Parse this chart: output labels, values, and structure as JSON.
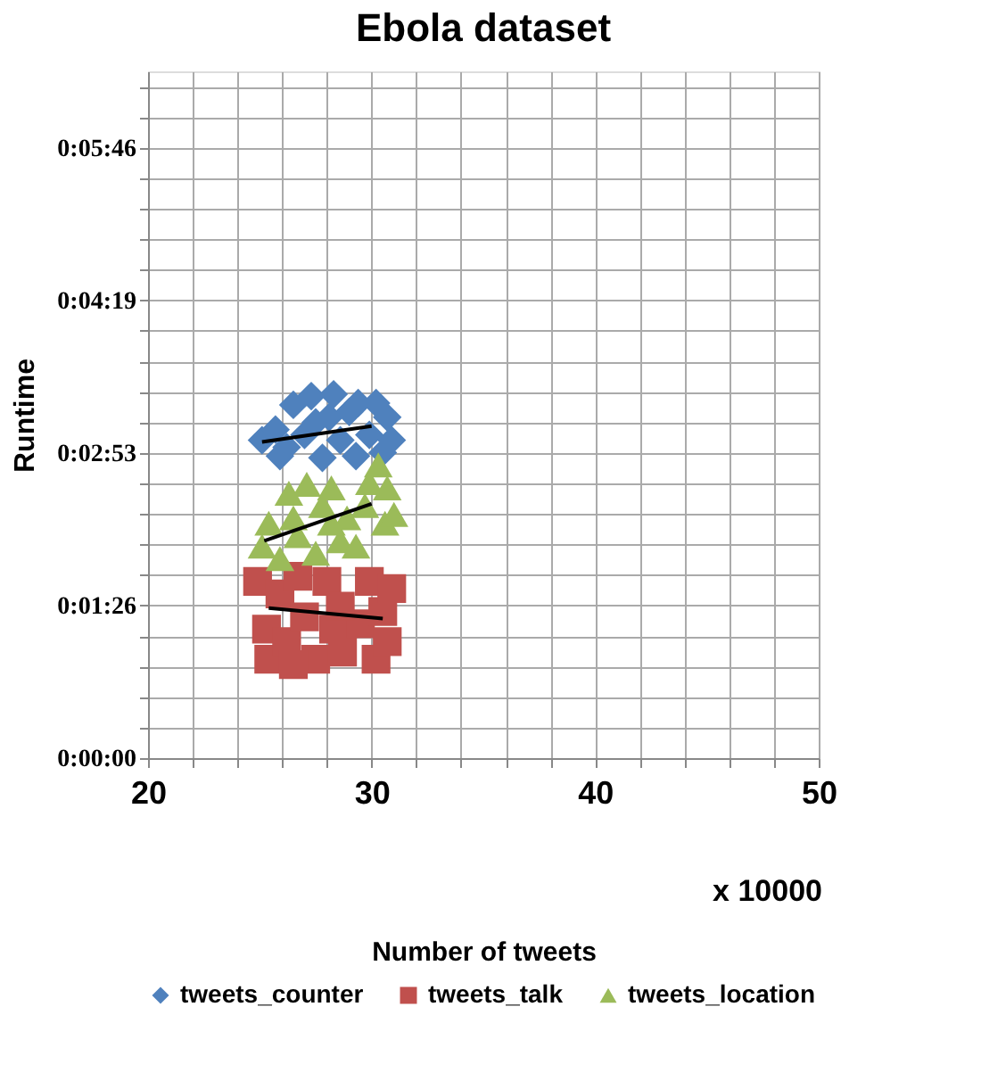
{
  "chart_data": {
    "type": "scatter",
    "title": "Ebola dataset",
    "xlabel": "Number of tweets",
    "ylabel": "Runtime",
    "annotations": [
      "x 10000"
    ],
    "xlim": [
      20,
      50
    ],
    "ylim": [
      0,
      388.8
    ],
    "xticks": [
      20,
      {
        "value": 22,
        "label": null
      },
      {
        "value": 24,
        "label": null
      },
      {
        "value": 26,
        "label": null
      },
      {
        "value": 28,
        "label": null
      },
      30,
      {
        "value": 32,
        "label": null
      },
      {
        "value": 34,
        "label": null
      },
      {
        "value": 36,
        "label": null
      },
      {
        "value": 38,
        "label": null
      },
      40,
      {
        "value": 42,
        "label": null
      },
      {
        "value": 44,
        "label": null
      },
      {
        "value": 46,
        "label": null
      },
      {
        "value": 48,
        "label": null
      },
      50
    ],
    "yticks": [
      {
        "value": 0,
        "label": "0:00:00"
      },
      {
        "value": 17.28,
        "label": null
      },
      {
        "value": 34.56,
        "label": null
      },
      {
        "value": 51.84,
        "label": null
      },
      {
        "value": 69.12,
        "label": null
      },
      {
        "value": 86.4,
        "label": "0:01:26"
      },
      {
        "value": 103.68,
        "label": null
      },
      {
        "value": 120.96,
        "label": null
      },
      {
        "value": 138.24,
        "label": null
      },
      {
        "value": 155.52,
        "label": null
      },
      {
        "value": 172.8,
        "label": "0:02:53"
      },
      {
        "value": 190.08,
        "label": null
      },
      {
        "value": 207.36,
        "label": null
      },
      {
        "value": 224.64,
        "label": null
      },
      {
        "value": 241.92,
        "label": null
      },
      {
        "value": 259.2,
        "label": "0:04:19"
      },
      {
        "value": 276.48,
        "label": null
      },
      {
        "value": 293.76,
        "label": null
      },
      {
        "value": 311.04,
        "label": null
      },
      {
        "value": 328.32,
        "label": null
      },
      {
        "value": 345.6,
        "label": "0:05:46"
      },
      {
        "value": 362.88,
        "label": null
      },
      {
        "value": 380.16,
        "label": null
      }
    ],
    "grid": true,
    "legend": "bottom",
    "series": [
      {
        "name": "tweets_counter",
        "color": "#4f81bd",
        "marker": "diamond",
        "x": [
          25.1,
          25.7,
          25.9,
          26.5,
          27.0,
          27.3,
          27.8,
          28.1,
          28.3,
          28.6,
          29.0,
          29.3,
          29.4,
          29.9,
          30.2,
          30.5,
          30.7,
          30.9,
          26.2,
          27.5
        ],
        "values": [
          180,
          186,
          171,
          200,
          183,
          205,
          170,
          193,
          206,
          180,
          196,
          171,
          201,
          183,
          201,
          173,
          193,
          180,
          176,
          190
        ]
      },
      {
        "name": "tweets_talk",
        "color": "#c0504d",
        "marker": "square",
        "x": [
          24.9,
          25.3,
          25.4,
          25.9,
          26.2,
          26.7,
          27.0,
          27.5,
          28.0,
          28.3,
          28.7,
          29.1,
          29.5,
          29.9,
          30.2,
          30.5,
          30.9,
          30.7,
          26.5,
          28.6
        ],
        "values": [
          100,
          73,
          56,
          93,
          66,
          103,
          80,
          56,
          100,
          73,
          60,
          null,
          76,
          100,
          56,
          83,
          96,
          66,
          53,
          86
        ]
      },
      {
        "name": "tweets_location",
        "color": "#9bbb59",
        "marker": "triangle",
        "x": [
          25.1,
          25.4,
          25.9,
          26.3,
          26.7,
          27.1,
          27.5,
          27.8,
          28.2,
          28.6,
          28.9,
          29.3,
          29.7,
          29.9,
          30.3,
          30.6,
          30.7,
          31.0,
          26.5,
          28.2
        ],
        "values": [
          120,
          133,
          113,
          150,
          126,
          155,
          116,
          143,
          153,
          123,
          136,
          120,
          143,
          156,
          166,
          133,
          153,
          138,
          136,
          133
        ]
      },
      {
        "type": "line",
        "color": "#000000",
        "marker": "none",
        "x": [
          25.1,
          30.0
        ],
        "values": [
          179,
          188
        ]
      },
      {
        "type": "line",
        "color": "#000000",
        "marker": "none",
        "x": [
          25.4,
          30.5
        ],
        "values": [
          85,
          79
        ]
      },
      {
        "type": "line",
        "color": "#000000",
        "marker": "none",
        "x": [
          25.2,
          30.0
        ],
        "values": [
          123,
          144
        ]
      }
    ]
  }
}
